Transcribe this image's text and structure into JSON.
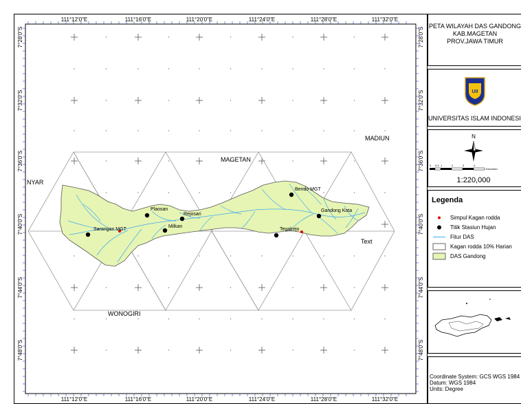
{
  "map": {
    "top_lon_labels": [
      "111°12'0\"E",
      "111°16'0\"E",
      "111°20'0\"E",
      "111°24'0\"E",
      "111°28'0\"E",
      "111°32'0\"E"
    ],
    "bottom_lon_labels": [
      "111°12'0\"E",
      "111°16'0\"E",
      "111°20'0\"E",
      "111°24'0\"E",
      "111°28'0\"E",
      "111°32'0\"E"
    ],
    "left_lat_labels": [
      "7°28'0\"S",
      "7°32'0\"S",
      "7°36'0\"S",
      "7°40'0\"S",
      "7°44'0\"S",
      "7°48'0\"S"
    ],
    "right_lat_labels": [
      "7°28'0\"S",
      "7°32'0\"S",
      "7°36'0\"S",
      "7°40'0\"S",
      "7°44'0\"S",
      "7°48'0\"S"
    ],
    "regions": {
      "madiun": "MADIUN",
      "magetan": "MAGETAN",
      "nyar": "NYAR",
      "wonogiri": "WONOGIRI",
      "text": "Text"
    },
    "stations": [
      {
        "label": "Sarangan MGT"
      },
      {
        "label": "Plaosan"
      },
      {
        "label": "Milkan"
      },
      {
        "label": "Rejosari"
      },
      {
        "label": "Bendo MGT"
      },
      {
        "label": "Gandong Kota"
      },
      {
        "label": "Tegalrejo"
      }
    ],
    "colors": {
      "das_fill": "#e6f5b3",
      "river": "#3fa9f5",
      "grid": "#9a9a9a"
    }
  },
  "title_panel": {
    "line1": "PETA WILAYAH DAS GANDONG",
    "line2": "KAB.MAGETAN",
    "line3": "PROV.JAWA TIMUR"
  },
  "logo_panel": {
    "logo_text": "UII",
    "university": "UNIVERSITAS ISLAM INDONESIA"
  },
  "north_panel": {
    "north_letter": "N",
    "scale_ticks": [
      "0",
      "0,5",
      "1",
      "2",
      "3",
      "4"
    ],
    "scale_unit": "Kilometer",
    "scale_ratio": "1:220,000"
  },
  "legend": {
    "title": "Legenda",
    "items": [
      {
        "label": "Simpul Kagan rodda"
      },
      {
        "label": "Titik Stasiun Hujan"
      },
      {
        "label": "Fitur DAS"
      },
      {
        "label": "Kagan rodda 10% Harian"
      },
      {
        "label": "DAS Gandong"
      }
    ]
  },
  "coordinates": {
    "line1": "Coordinate System: GCS WGS 1984",
    "line2": "Datum: WGS 1984",
    "line3": "Units: Degree"
  }
}
